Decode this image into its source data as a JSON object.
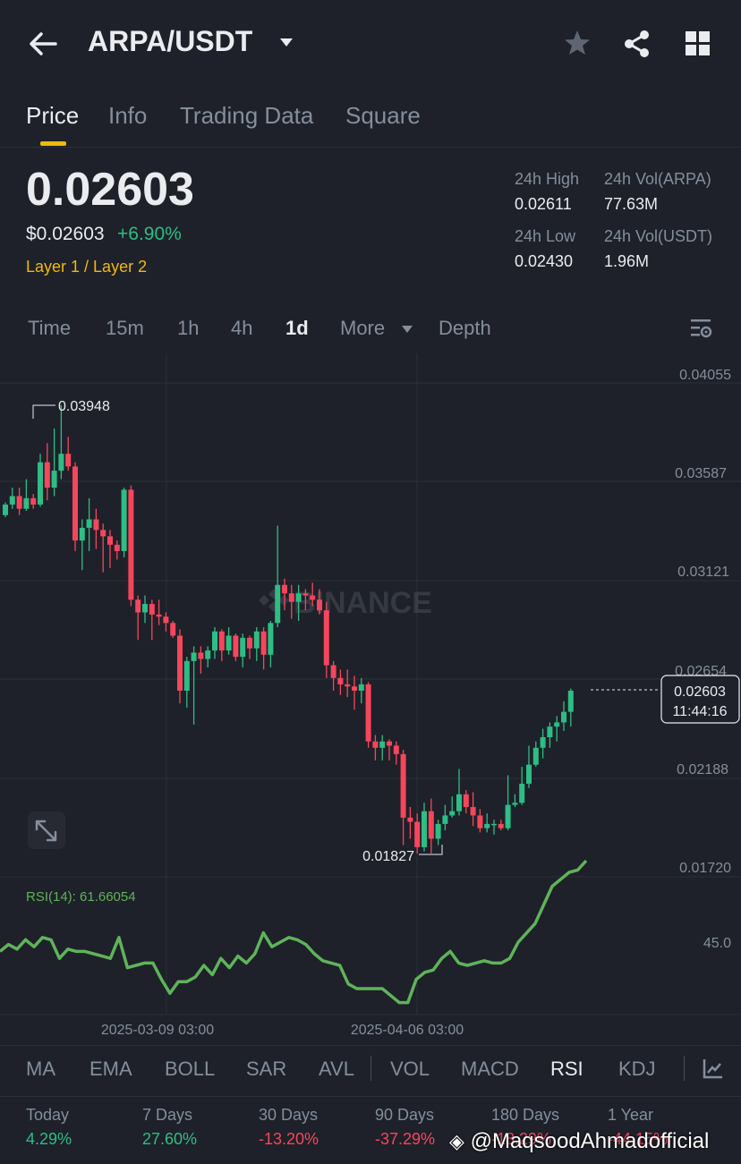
{
  "header": {
    "pair": "ARPA/USDT"
  },
  "tabs": [
    "Price",
    "Info",
    "Trading Data",
    "Square"
  ],
  "price": {
    "last": "0.02603",
    "usd": "$0.02603",
    "change": "+6.90%",
    "tag": "Layer 1 / Layer 2"
  },
  "stats": {
    "high_label": "24h High",
    "high": "0.02611",
    "vol_base_label": "24h Vol(ARPA)",
    "vol_base": "77.63M",
    "low_label": "24h Low",
    "low": "0.02430",
    "vol_quote_label": "24h Vol(USDT)",
    "vol_quote": "1.96M"
  },
  "timeframes": [
    "Time",
    "15m",
    "1h",
    "4h",
    "1d",
    "More",
    "Depth"
  ],
  "chart_data": {
    "type": "candlestick",
    "y_axis_labels": [
      "0.04055",
      "0.03587",
      "0.03121",
      "0.02654",
      "0.02188",
      "0.01720"
    ],
    "high_marker": "0.03948",
    "low_marker": "0.01827",
    "current_price": "0.02603",
    "countdown": "11:44:16",
    "watermark": "BINANCE",
    "x_axis_labels": [
      "2025-03-09 03:00",
      "2025-04-06 03:00"
    ],
    "candles": [
      [
        0.0343,
        0.0348,
        0.0349,
        0.0342
      ],
      [
        0.0348,
        0.0352,
        0.0356,
        0.0346
      ],
      [
        0.0352,
        0.0346,
        0.0356,
        0.0343
      ],
      [
        0.0346,
        0.0351,
        0.036,
        0.0345
      ],
      [
        0.0351,
        0.0348,
        0.0353,
        0.0346
      ],
      [
        0.0348,
        0.0368,
        0.0372,
        0.0347
      ],
      [
        0.0368,
        0.0356,
        0.0377,
        0.035
      ],
      [
        0.0356,
        0.0364,
        0.0384,
        0.0352
      ],
      [
        0.0364,
        0.0372,
        0.0395,
        0.036
      ],
      [
        0.0372,
        0.0366,
        0.038,
        0.0364
      ],
      [
        0.0366,
        0.0331,
        0.0368,
        0.0326
      ],
      [
        0.0331,
        0.0337,
        0.0341,
        0.0317
      ],
      [
        0.0337,
        0.0341,
        0.0351,
        0.0326
      ],
      [
        0.0341,
        0.0336,
        0.0346,
        0.0327
      ],
      [
        0.0336,
        0.0333,
        0.0339,
        0.0316
      ],
      [
        0.0333,
        0.0329,
        0.0336,
        0.0318
      ],
      [
        0.0329,
        0.0326,
        0.0331,
        0.0322
      ],
      [
        0.0326,
        0.0355,
        0.0356,
        0.0323
      ],
      [
        0.0355,
        0.0303,
        0.0357,
        0.03
      ],
      [
        0.0303,
        0.0297,
        0.0305,
        0.0284
      ],
      [
        0.0297,
        0.0301,
        0.0305,
        0.0292
      ],
      [
        0.0301,
        0.0296,
        0.0303,
        0.0284
      ],
      [
        0.0296,
        0.0295,
        0.0303,
        0.0291
      ],
      [
        0.0295,
        0.0292,
        0.0297,
        0.0288
      ],
      [
        0.0292,
        0.0286,
        0.0293,
        0.0285
      ],
      [
        0.0286,
        0.026,
        0.0289,
        0.0254
      ],
      [
        0.026,
        0.0274,
        0.0276,
        0.0252
      ],
      [
        0.0274,
        0.0278,
        0.0281,
        0.0244
      ],
      [
        0.0278,
        0.0275,
        0.0281,
        0.0268
      ],
      [
        0.0275,
        0.0279,
        0.0281,
        0.0271
      ],
      [
        0.0279,
        0.0288,
        0.029,
        0.0275
      ],
      [
        0.0288,
        0.0279,
        0.0289,
        0.0274
      ],
      [
        0.0279,
        0.0286,
        0.029,
        0.0277
      ],
      [
        0.0286,
        0.0276,
        0.0287,
        0.0274
      ],
      [
        0.0276,
        0.0285,
        0.0287,
        0.0271
      ],
      [
        0.0285,
        0.028,
        0.0286,
        0.0275
      ],
      [
        0.028,
        0.0288,
        0.029,
        0.0274
      ],
      [
        0.0288,
        0.0277,
        0.029,
        0.027
      ],
      [
        0.0277,
        0.0292,
        0.0293,
        0.0271
      ],
      [
        0.0292,
        0.031,
        0.0338,
        0.029
      ],
      [
        0.031,
        0.0306,
        0.0313,
        0.0298
      ],
      [
        0.0306,
        0.0302,
        0.031,
        0.0294
      ],
      [
        0.0302,
        0.0306,
        0.031,
        0.0293
      ],
      [
        0.0306,
        0.0305,
        0.0308,
        0.0298
      ],
      [
        0.0305,
        0.0303,
        0.0311,
        0.03
      ],
      [
        0.0303,
        0.0298,
        0.0308,
        0.0296
      ],
      [
        0.0298,
        0.0272,
        0.0302,
        0.0266
      ],
      [
        0.0272,
        0.0266,
        0.0274,
        0.026
      ],
      [
        0.0266,
        0.0263,
        0.027,
        0.0258
      ],
      [
        0.0263,
        0.0262,
        0.027,
        0.0257
      ],
      [
        0.0262,
        0.026,
        0.0267,
        0.0251
      ],
      [
        0.026,
        0.0263,
        0.0266,
        0.0254
      ],
      [
        0.0263,
        0.0236,
        0.0264,
        0.0233
      ],
      [
        0.0236,
        0.0233,
        0.0239,
        0.0227
      ],
      [
        0.0233,
        0.0236,
        0.0239,
        0.0227
      ],
      [
        0.0236,
        0.0234,
        0.0237,
        0.0227
      ],
      [
        0.0234,
        0.023,
        0.0236,
        0.0225
      ],
      [
        0.023,
        0.02,
        0.0232,
        0.0187
      ],
      [
        0.02,
        0.0198,
        0.0205,
        0.019
      ],
      [
        0.0198,
        0.0186,
        0.0202,
        0.0183
      ],
      [
        0.0186,
        0.0203,
        0.0207,
        0.0184
      ],
      [
        0.0203,
        0.019,
        0.0209,
        0.0183
      ],
      [
        0.019,
        0.0197,
        0.0199,
        0.0187
      ],
      [
        0.0197,
        0.0201,
        0.0206,
        0.0194
      ],
      [
        0.0201,
        0.0203,
        0.021,
        0.02
      ],
      [
        0.0203,
        0.0211,
        0.0223,
        0.0201
      ],
      [
        0.0211,
        0.0205,
        0.0213,
        0.0202
      ],
      [
        0.0205,
        0.0201,
        0.0212,
        0.0196
      ],
      [
        0.0201,
        0.0195,
        0.0204,
        0.0193
      ],
      [
        0.0195,
        0.0197,
        0.0202,
        0.0193
      ],
      [
        0.0197,
        0.0197,
        0.0199,
        0.0192
      ],
      [
        0.0197,
        0.0195,
        0.0199,
        0.0194
      ],
      [
        0.0195,
        0.0206,
        0.022,
        0.0194
      ],
      [
        0.0206,
        0.0207,
        0.0211,
        0.0205
      ],
      [
        0.0207,
        0.0216,
        0.0224,
        0.0206
      ],
      [
        0.0216,
        0.0225,
        0.0234,
        0.0214
      ],
      [
        0.0225,
        0.0233,
        0.0236,
        0.0224
      ],
      [
        0.0233,
        0.0238,
        0.0242,
        0.0228
      ],
      [
        0.0238,
        0.0243,
        0.0245,
        0.0233
      ],
      [
        0.0243,
        0.0245,
        0.0248,
        0.0236
      ],
      [
        0.0245,
        0.025,
        0.0255,
        0.0241
      ],
      [
        0.025,
        0.026,
        0.0261,
        0.0243
      ]
    ],
    "rsi": {
      "label": "RSI(14): 61.66054",
      "axis_label": "45.0",
      "values": [
        43,
        44.5,
        43.5,
        45.5,
        44,
        46,
        45.5,
        41.5,
        43.5,
        43,
        43,
        42.5,
        42,
        41.5,
        46,
        39.5,
        40,
        40.5,
        40.5,
        37,
        34,
        36.5,
        36.5,
        37.5,
        40,
        38,
        41.5,
        39.5,
        42,
        40.5,
        42.5,
        47,
        44,
        45,
        46,
        45.5,
        44.5,
        42.5,
        41,
        40.5,
        40,
        36,
        35,
        35,
        35,
        35,
        33.5,
        32,
        32,
        37,
        38.5,
        39,
        41.5,
        43,
        40.5,
        40,
        40.5,
        41,
        40.5,
        40.5,
        41.5,
        45,
        47,
        49,
        53,
        57,
        58.5,
        60,
        60.5,
        62.5
      ]
    }
  },
  "indicators": [
    "MA",
    "EMA",
    "BOLL",
    "SAR",
    "AVL",
    "VOL",
    "MACD",
    "RSI",
    "KDJ"
  ],
  "performance": [
    {
      "label": "Today",
      "value": "4.29%",
      "color": "#2ebd85"
    },
    {
      "label": "7 Days",
      "value": "27.60%",
      "color": "#2ebd85"
    },
    {
      "label": "30 Days",
      "value": "-13.20%",
      "color": "#f6465d"
    },
    {
      "label": "90 Days",
      "value": "-37.29%",
      "color": "#f6465d"
    },
    {
      "label": "180 Days",
      "value": "-18.29%",
      "color": "#f6465d"
    },
    {
      "label": "1 Year",
      "value": "-44.15%",
      "color": "#f6465d"
    }
  ],
  "watermark_handle": "@MaqsoodAhmadofficial",
  "colors": {
    "up": "#2ebd85",
    "down": "#f6465d",
    "accent": "#f0b90b",
    "rsi": "#5fb35a"
  },
  "icons": [
    "back-arrow-icon",
    "caret-down-icon",
    "star-icon",
    "share-icon",
    "grid-icon",
    "chart-settings-icon",
    "expand-icon",
    "draw-icon",
    "binance-logo-icon"
  ]
}
